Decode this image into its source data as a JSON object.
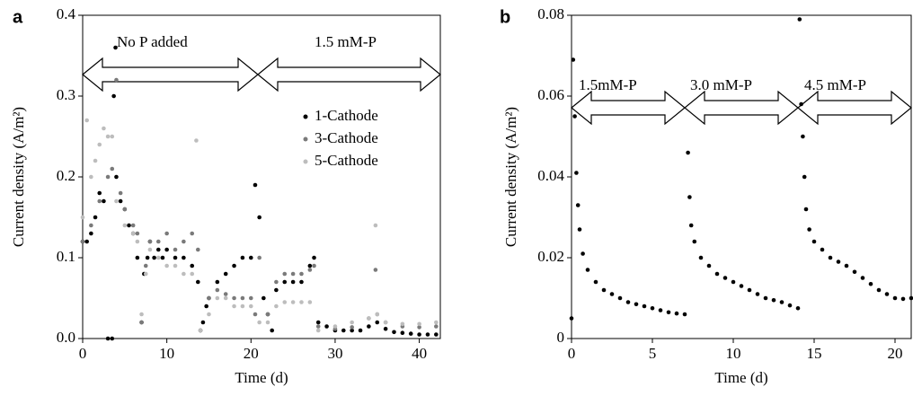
{
  "chart_data": [
    {
      "type": "scatter",
      "panel_label": "a",
      "xlabel": "Time (d)",
      "ylabel": "Current density (A/m²)",
      "annotations": [
        "No P added",
        "1.5 mM-P"
      ],
      "xlim": [
        0,
        42.5
      ],
      "xticks": [
        0,
        10,
        20,
        30,
        40
      ],
      "ylim": [
        0,
        0.4
      ],
      "yticks": [
        {
          "value": 0,
          "label": "0.0"
        },
        0.1,
        0.2,
        0.3,
        0.4
      ],
      "legend": "upper right",
      "series": [
        {
          "name": "1-Cathode",
          "color": "#000000",
          "x": [
            0,
            0.5,
            1,
            1.5,
            2,
            2.5,
            3,
            3.5,
            3.7,
            3.9,
            4,
            4.5,
            5,
            5.5,
            6,
            6.5,
            7,
            7.3,
            7.7,
            8,
            8.5,
            9,
            9.5,
            10,
            11,
            12,
            13,
            13.7,
            14,
            14.3,
            14.7,
            15,
            16,
            17,
            18,
            19,
            20,
            20.5,
            21,
            21.5,
            22,
            22.5,
            23,
            24,
            25,
            26,
            27,
            27.5,
            28,
            29,
            30,
            31,
            32,
            33,
            34,
            35,
            36,
            37,
            38,
            39,
            40,
            41,
            42
          ],
          "values": [
            0.12,
            0.12,
            0.13,
            0.15,
            0.18,
            0.17,
            0,
            0,
            0.3,
            0.36,
            0.2,
            0.17,
            0.16,
            0.14,
            0.13,
            0.1,
            0.02,
            0.08,
            0.1,
            0.12,
            0.1,
            0.11,
            0.1,
            0.11,
            0.1,
            0.1,
            0.09,
            0.07,
            0.01,
            0.02,
            0.04,
            0.05,
            0.07,
            0.08,
            0.09,
            0.1,
            0.1,
            0.19,
            0.15,
            0.05,
            0.03,
            0.01,
            0.06,
            0.07,
            0.07,
            0.07,
            0.09,
            0.1,
            0.02,
            0.015,
            0.01,
            0.01,
            0.01,
            0.01,
            0.015,
            0.02,
            0.012,
            0.008,
            0.007,
            0.006,
            0.005,
            0.005,
            0.005
          ]
        },
        {
          "name": "3-Cathode",
          "color": "#7a7a7a",
          "x": [
            0,
            1,
            2,
            3,
            3.5,
            4,
            4.5,
            5,
            6,
            6.5,
            7,
            7.5,
            8,
            9,
            10,
            11,
            12,
            13,
            13.7,
            14,
            15,
            16,
            17,
            18,
            19,
            20,
            20.5,
            21,
            22,
            23,
            24,
            25,
            26,
            27,
            27.5,
            28,
            30,
            32,
            34,
            34.8,
            35,
            36,
            38,
            40,
            42
          ],
          "values": [
            0.12,
            0.14,
            0.17,
            0.2,
            0.21,
            0.32,
            0.18,
            0.16,
            0.14,
            0.13,
            0.02,
            0.09,
            0.12,
            0.12,
            0.13,
            0.11,
            0.12,
            0.13,
            0.11,
            0.01,
            0.05,
            0.06,
            0.055,
            0.05,
            0.05,
            0.05,
            0.03,
            0.1,
            0.03,
            0.07,
            0.08,
            0.08,
            0.08,
            0.085,
            0.09,
            0.015,
            0.012,
            0.014,
            0.025,
            0.085,
            0.03,
            0.02,
            0.015,
            0.014,
            0.015
          ]
        },
        {
          "name": "5-Cathode",
          "color": "#bdbdbd",
          "x": [
            0,
            0.5,
            1,
            1.5,
            2,
            2.5,
            3,
            3.5,
            4,
            5,
            6,
            6.5,
            7,
            7.5,
            8,
            9,
            10,
            11,
            12,
            13,
            13.5,
            14,
            15,
            16,
            17,
            18,
            19,
            20,
            21,
            22,
            23,
            24,
            25,
            26,
            27,
            28,
            30,
            32,
            34,
            34.8,
            35,
            36,
            38,
            40,
            42
          ],
          "values": [
            0.15,
            0.27,
            0.2,
            0.22,
            0.24,
            0.26,
            0.25,
            0.25,
            0.17,
            0.14,
            0.13,
            0.12,
            0.03,
            0.08,
            0.11,
            0.1,
            0.09,
            0.09,
            0.08,
            0.08,
            0.245,
            0.01,
            0.03,
            0.05,
            0.05,
            0.04,
            0.04,
            0.04,
            0.02,
            0.02,
            0.04,
            0.045,
            0.045,
            0.045,
            0.045,
            0.01,
            0.015,
            0.02,
            0.025,
            0.14,
            0.03,
            0.02,
            0.018,
            0.018,
            0.02
          ]
        }
      ]
    },
    {
      "type": "scatter",
      "panel_label": "b",
      "xlabel": "Time (d)",
      "ylabel": "Current density (A/m²)",
      "annotations": [
        "1.5mM-P",
        "3.0 mM-P",
        "4.5 mM-P"
      ],
      "xlim": [
        0,
        21
      ],
      "xticks": [
        0,
        5,
        10,
        15,
        20
      ],
      "ylim": [
        0,
        0.08
      ],
      "yticks": [
        0,
        0.02,
        0.04,
        0.06,
        0.08
      ],
      "series": [
        {
          "color": "#000000",
          "x": [
            0,
            0.1,
            0.2,
            0.3,
            0.4,
            0.5,
            0.7,
            1,
            1.5,
            2,
            2.5,
            3,
            3.5,
            4,
            4.5,
            5,
            5.5,
            6,
            6.5,
            7,
            7.2,
            7.3,
            7.4,
            7.6,
            8,
            8.5,
            9,
            9.5,
            10,
            10.5,
            11,
            11.5,
            12,
            12.5,
            13,
            13.5,
            14,
            14.1,
            14.2,
            14.3,
            14.4,
            14.5,
            14.7,
            15,
            15.5,
            16,
            16.5,
            17,
            17.5,
            18,
            18.5,
            19,
            19.5,
            20,
            20.5,
            21
          ],
          "values": [
            0.005,
            0.069,
            0.055,
            0.041,
            0.033,
            0.027,
            0.021,
            0.017,
            0.014,
            0.012,
            0.011,
            0.01,
            0.009,
            0.0085,
            0.008,
            0.0075,
            0.007,
            0.0065,
            0.0062,
            0.006,
            0.046,
            0.035,
            0.028,
            0.024,
            0.02,
            0.018,
            0.016,
            0.015,
            0.014,
            0.013,
            0.012,
            0.011,
            0.01,
            0.0095,
            0.009,
            0.0082,
            0.0075,
            0.079,
            0.058,
            0.05,
            0.04,
            0.032,
            0.027,
            0.024,
            0.022,
            0.02,
            0.019,
            0.018,
            0.0165,
            0.015,
            0.0135,
            0.012,
            0.011,
            0.01,
            0.0098,
            0.01
          ]
        }
      ]
    }
  ]
}
